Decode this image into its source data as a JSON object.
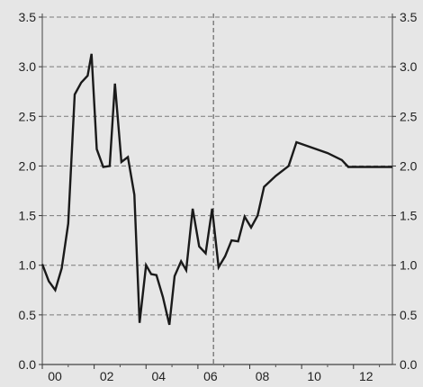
{
  "chart_data": {
    "type": "line",
    "title": "",
    "xlabel": "",
    "ylabel": "",
    "ylim": [
      0,
      3.5
    ],
    "xlim": [
      2000,
      2013.5
    ],
    "yticks": [
      "0.0",
      "0.5",
      "1.0",
      "1.5",
      "2.0",
      "2.5",
      "3.0",
      "3.5"
    ],
    "xticks": [
      {
        "value": 2000,
        "label": "00"
      },
      {
        "value": 2002,
        "label": "02"
      },
      {
        "value": 2004,
        "label": "04"
      },
      {
        "value": 2006,
        "label": "06"
      },
      {
        "value": 2008,
        "label": "08"
      },
      {
        "value": 2010,
        "label": "10"
      },
      {
        "value": 2012,
        "label": "12"
      }
    ],
    "grid": true,
    "dual_y_axis": true,
    "vertical_marker_x": 2006.6,
    "line_color": "#1a1a1a",
    "series": [
      {
        "points": [
          [
            2000.0,
            1.01
          ],
          [
            2000.25,
            0.84
          ],
          [
            2000.5,
            0.75
          ],
          [
            2000.75,
            0.97
          ],
          [
            2001.0,
            1.42
          ],
          [
            2001.25,
            2.72
          ],
          [
            2001.5,
            2.84
          ],
          [
            2001.75,
            2.91
          ],
          [
            2001.9,
            3.13
          ],
          [
            2002.1,
            2.17
          ],
          [
            2002.35,
            1.99
          ],
          [
            2002.6,
            2.0
          ],
          [
            2002.8,
            2.83
          ],
          [
            2003.05,
            2.04
          ],
          [
            2003.3,
            2.09
          ],
          [
            2003.55,
            1.71
          ],
          [
            2003.75,
            0.42
          ],
          [
            2004.0,
            1.0
          ],
          [
            2004.2,
            0.91
          ],
          [
            2004.4,
            0.9
          ],
          [
            2004.65,
            0.68
          ],
          [
            2004.9,
            0.4
          ],
          [
            2005.1,
            0.89
          ],
          [
            2005.35,
            1.04
          ],
          [
            2005.55,
            0.95
          ],
          [
            2005.8,
            1.57
          ],
          [
            2006.05,
            1.19
          ],
          [
            2006.3,
            1.12
          ],
          [
            2006.55,
            1.57
          ],
          [
            2006.8,
            0.98
          ],
          [
            2007.05,
            1.09
          ],
          [
            2007.3,
            1.25
          ],
          [
            2007.55,
            1.24
          ],
          [
            2007.8,
            1.49
          ],
          [
            2008.05,
            1.38
          ],
          [
            2008.3,
            1.5
          ],
          [
            2008.55,
            1.79
          ],
          [
            2009.0,
            1.9
          ],
          [
            2009.5,
            2.0
          ],
          [
            2009.8,
            2.24
          ],
          [
            2011.0,
            2.13
          ],
          [
            2011.55,
            2.06
          ],
          [
            2011.8,
            1.99
          ],
          [
            2013.5,
            1.99
          ]
        ]
      }
    ]
  }
}
